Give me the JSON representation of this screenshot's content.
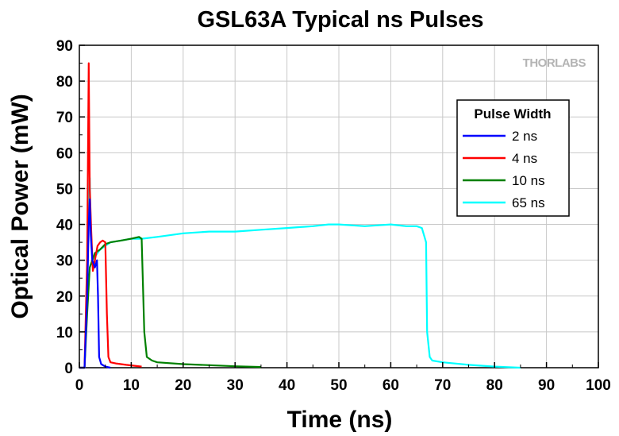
{
  "chart_data": {
    "type": "line",
    "title": "GSL63A Typical ns Pulses",
    "xlabel": "Time (ns)",
    "ylabel": "Optical Power (mW)",
    "xlim": [
      0,
      100
    ],
    "ylim": [
      0,
      90
    ],
    "xticks": [
      0,
      10,
      20,
      30,
      40,
      50,
      60,
      70,
      80,
      90,
      100
    ],
    "yticks": [
      0,
      10,
      20,
      30,
      40,
      50,
      60,
      70,
      80,
      90
    ],
    "grid": true,
    "legend": {
      "title": "Pulse Width",
      "position": "top-right"
    },
    "logo_text": "THORLABS",
    "series": [
      {
        "name": "65 ns",
        "color": "#00ffff",
        "x": [
          0,
          1.0,
          1.5,
          1.8,
          2.0,
          2.2,
          2.5,
          3.0,
          4.0,
          5.0,
          6.0,
          8.0,
          10.0,
          12.0,
          15.0,
          20.0,
          25.0,
          30.0,
          35.0,
          40.0,
          45.0,
          48.0,
          50.0,
          55.0,
          60.0,
          63.0,
          65.0,
          66.0,
          66.8,
          67.0,
          67.5,
          68.0,
          70.0,
          75.0,
          80.0,
          85.0
        ],
        "y": [
          0,
          0,
          20,
          45,
          53,
          38,
          30,
          31,
          33,
          34,
          35,
          35.5,
          36,
          36,
          36.5,
          37.5,
          38,
          38,
          38.5,
          39,
          39.5,
          40,
          40,
          39.5,
          40,
          39.5,
          39.5,
          39,
          35,
          10,
          3,
          2,
          1.5,
          0.8,
          0.3,
          0
        ]
      },
      {
        "name": "10 ns",
        "color": "#008000",
        "x": [
          0,
          1.0,
          1.5,
          2.0,
          2.5,
          3.0,
          4.0,
          5.0,
          6.0,
          8.0,
          10.0,
          11.5,
          12.0,
          12.5,
          13.0,
          14.0,
          15.0,
          20.0,
          25.0,
          30.0,
          35.0
        ],
        "y": [
          0,
          0,
          15,
          28,
          30,
          32,
          33,
          34.5,
          35,
          35.5,
          36,
          36.5,
          36,
          10,
          3,
          2,
          1.5,
          1,
          0.7,
          0.4,
          0.2
        ]
      },
      {
        "name": "4 ns",
        "color": "#ff0000",
        "x": [
          0,
          1.0,
          1.5,
          1.8,
          2.0,
          2.3,
          2.6,
          3.0,
          3.5,
          4.0,
          4.5,
          5.0,
          5.3,
          5.6,
          6.0,
          7.0,
          9.0,
          12.0
        ],
        "y": [
          0,
          0,
          30,
          85,
          50,
          38,
          27,
          30,
          34,
          35,
          35.5,
          35,
          15,
          3,
          1.5,
          1.2,
          0.8,
          0.3
        ]
      },
      {
        "name": "2 ns",
        "color": "#0000ff",
        "x": [
          0,
          1.0,
          1.5,
          1.8,
          2.0,
          2.2,
          2.5,
          3.0,
          3.4,
          3.6,
          3.8,
          4.2,
          5.0,
          6.0
        ],
        "y": [
          0,
          0,
          20,
          40,
          47,
          37,
          30,
          28,
          30,
          20,
          3,
          1,
          0.3,
          0
        ]
      }
    ]
  }
}
